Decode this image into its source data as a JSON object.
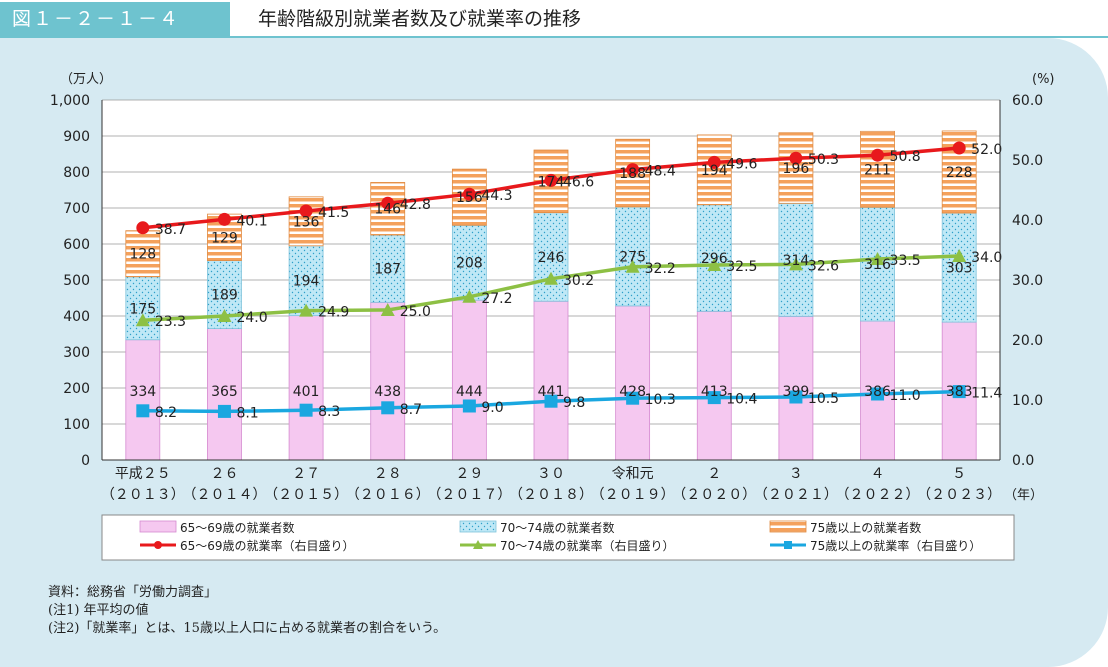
{
  "header": {
    "figure_number": "図１－２－１－４",
    "title": "年齢階級別就業者数及び就業率の推移"
  },
  "chart_data": {
    "type": "bar",
    "stacked": true,
    "y_left_unit": "（万人）",
    "y_right_unit": "(%)",
    "x_unit": "（年）",
    "ylim": [
      0,
      1000
    ],
    "y2lim": [
      0,
      60
    ],
    "y_ticks": [
      "0",
      "100",
      "200",
      "300",
      "400",
      "500",
      "600",
      "700",
      "800",
      "900",
      "1,000"
    ],
    "y2_ticks": [
      "0.0",
      "10.0",
      "20.0",
      "30.0",
      "40.0",
      "50.0",
      "60.0"
    ],
    "categories": [
      {
        "era": "平成２５",
        "year": "（２０１３）"
      },
      {
        "era": "２６",
        "year": "（２０１４）"
      },
      {
        "era": "２７",
        "year": "（２０１５）"
      },
      {
        "era": "２８",
        "year": "（２０１６）"
      },
      {
        "era": "２９",
        "year": "（２０１７）"
      },
      {
        "era": "３０",
        "year": "（２０１８）"
      },
      {
        "era": "令和元",
        "year": "（２０１９）"
      },
      {
        "era": "２",
        "year": "（２０２０）"
      },
      {
        "era": "３",
        "year": "（２０２１）"
      },
      {
        "era": "４",
        "year": "（２０２２）"
      },
      {
        "era": "５",
        "year": "（２０２３）"
      }
    ],
    "bar_series": [
      {
        "name": "65～69歳の就業者数",
        "color": "#f5c8f0",
        "values": [
          334,
          365,
          401,
          438,
          444,
          441,
          428,
          413,
          399,
          386,
          383
        ]
      },
      {
        "name": "70～74歳の就業者数",
        "color": "#bfe8f6",
        "values": [
          175,
          189,
          194,
          187,
          208,
          246,
          275,
          296,
          314,
          316,
          303
        ]
      },
      {
        "name": "75歳以上の就業者数",
        "color": "#f4a15c",
        "values": [
          128,
          129,
          136,
          146,
          156,
          174,
          188,
          194,
          196,
          211,
          228
        ]
      }
    ],
    "line_series": [
      {
        "name": "65～69歳の就業率（右目盛り）",
        "color": "#e8191c",
        "marker": "circle",
        "values": [
          38.7,
          40.1,
          41.5,
          42.8,
          44.3,
          46.6,
          48.4,
          49.6,
          50.3,
          50.8,
          52.0
        ]
      },
      {
        "name": "70～74歳の就業率（右目盛り）",
        "color": "#8dc044",
        "marker": "triangle",
        "values": [
          23.3,
          24.0,
          24.9,
          25.0,
          27.2,
          30.2,
          32.2,
          32.5,
          32.6,
          33.5,
          34.0
        ]
      },
      {
        "name": "75歳以上の就業率（右目盛り）",
        "color": "#1aa7e0",
        "marker": "square",
        "values": [
          8.2,
          8.1,
          8.3,
          8.7,
          9.0,
          9.8,
          10.3,
          10.4,
          10.5,
          11.0,
          11.4
        ]
      }
    ]
  },
  "notes": {
    "source": "資料：総務省「労働力調査」",
    "note1": "(注1) 年平均の値",
    "note2": "(注2)「就業率」とは、15歳以上人口に占める就業者の割合をいう。"
  }
}
